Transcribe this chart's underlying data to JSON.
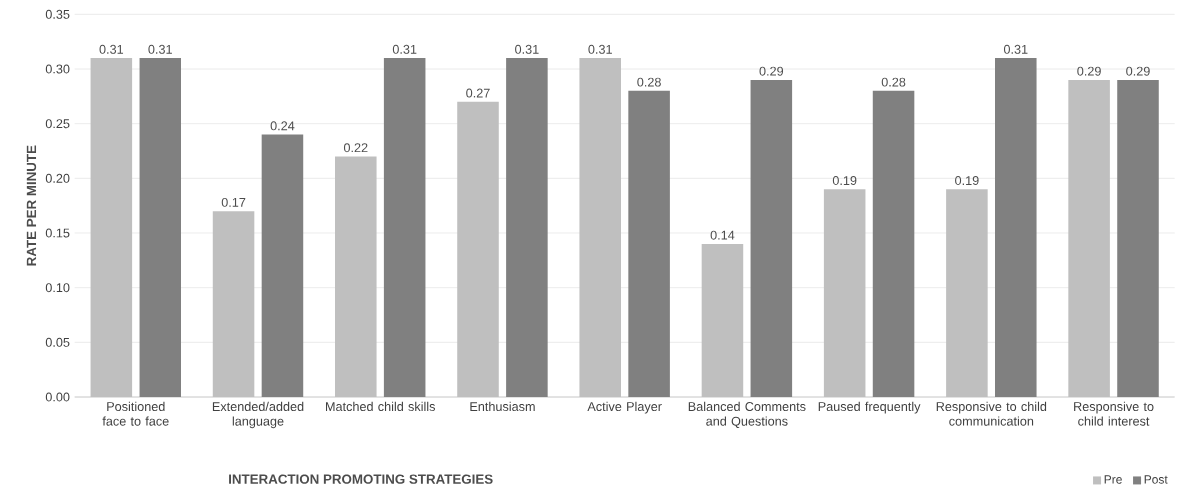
{
  "chart_data": {
    "type": "bar",
    "xlabel": "INTERACTION PROMOTING STRATEGIES",
    "ylabel": "RATE PER MINUTE",
    "categories": [
      "Positioned face to face",
      "Extended/added language",
      "Matched child skills",
      "Enthusiasm",
      "Active Player",
      "Balanced Comments and Questions",
      "Paused frequently",
      "Responsive to child communication",
      "Responsive to child interest"
    ],
    "series": [
      {
        "name": "Pre",
        "color": "#bfbfbf",
        "values": [
          0.31,
          0.17,
          0.22,
          0.27,
          0.31,
          0.14,
          0.19,
          0.19,
          0.29
        ]
      },
      {
        "name": "Post",
        "color": "#808080",
        "values": [
          0.31,
          0.24,
          0.31,
          0.31,
          0.28,
          0.29,
          0.28,
          0.31,
          0.29
        ]
      }
    ],
    "ylim": [
      0,
      0.35
    ],
    "yticks": [
      {
        "value": 0,
        "label": "0.00"
      },
      {
        "value": 0.05,
        "label": "0.05"
      },
      {
        "value": 0.1,
        "label": "0.10"
      },
      {
        "value": 0.15,
        "label": "0.15"
      },
      {
        "value": 0.2,
        "label": "0.20"
      },
      {
        "value": 0.25,
        "label": "0.25"
      },
      {
        "value": 0.3,
        "label": "0.30"
      },
      {
        "value": 0.35,
        "label": "0.35"
      }
    ],
    "grid": "y",
    "legend": "bottom right",
    "data_labels": true
  }
}
